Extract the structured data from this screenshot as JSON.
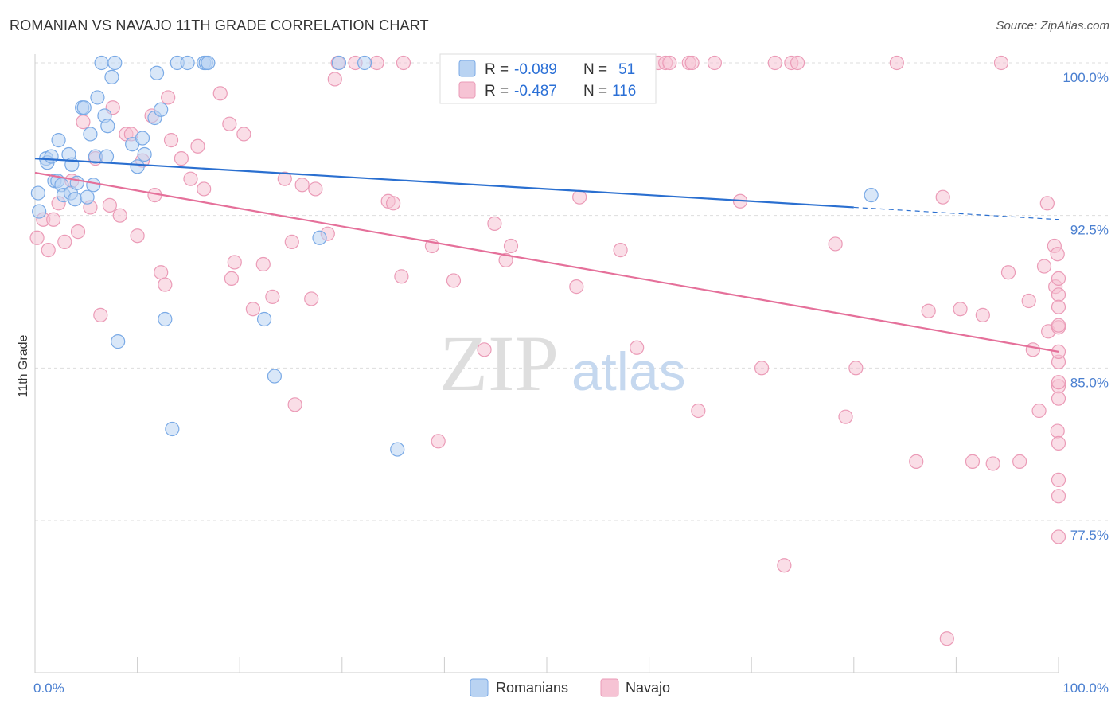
{
  "title": "ROMANIAN VS NAVAJO 11TH GRADE CORRELATION CHART",
  "source": "Source: ZipAtlas.com",
  "watermark": {
    "zip": "ZIP",
    "atlas": "atlas"
  },
  "chart_data": {
    "type": "scatter",
    "title": "ROMANIAN VS NAVAJO 11TH GRADE CORRELATION CHART",
    "xlabel": "",
    "ylabel": "11th Grade",
    "xlim": [
      0,
      100
    ],
    "ylim": [
      71.5,
      101.8
    ],
    "x_tick_labels": [
      {
        "value": 0,
        "label": "0.0%"
      },
      {
        "value": 100,
        "label": "100.0%"
      }
    ],
    "y_tick_labels": [
      {
        "value": 100,
        "label": "100.0%"
      },
      {
        "value": 92.5,
        "label": "92.5%"
      },
      {
        "value": 85,
        "label": "85.0%"
      },
      {
        "value": 77.5,
        "label": "77.5%"
      }
    ],
    "grid": true,
    "legend_position": "top-center",
    "legend": [
      {
        "r_label": "R =",
        "r_value": "-0.089",
        "n_label": "N =",
        "n_value": "51"
      },
      {
        "r_label": "R =",
        "r_value": "-0.487",
        "n_label": "N =",
        "n_value": "116"
      }
    ],
    "series": [
      {
        "name": "Romanians",
        "color": "#7aaae6",
        "fill": "#b9d3f2",
        "trend_color": "#2a6fd0",
        "trend": {
          "x0": 0,
          "y0": 95.3,
          "x1": 80,
          "y1": 92.9,
          "dashed_to_x": 100,
          "dashed_to_y": 92.3
        },
        "points": [
          [
            0.3,
            93.6
          ],
          [
            0.4,
            92.7
          ],
          [
            1.1,
            95.3
          ],
          [
            1.2,
            95.1
          ],
          [
            1.6,
            95.4
          ],
          [
            1.9,
            94.2
          ],
          [
            2.2,
            94.2
          ],
          [
            2.3,
            96.2
          ],
          [
            2.6,
            94.0
          ],
          [
            2.8,
            93.5
          ],
          [
            3.3,
            95.5
          ],
          [
            3.5,
            93.6
          ],
          [
            3.6,
            95.0
          ],
          [
            3.9,
            93.3
          ],
          [
            4.1,
            94.1
          ],
          [
            4.6,
            97.8
          ],
          [
            4.8,
            97.8
          ],
          [
            5.1,
            93.4
          ],
          [
            5.4,
            96.5
          ],
          [
            5.7,
            94.0
          ],
          [
            5.9,
            95.4
          ],
          [
            6.1,
            98.3
          ],
          [
            6.5,
            100.0
          ],
          [
            6.8,
            97.4
          ],
          [
            7.0,
            95.4
          ],
          [
            7.1,
            96.9
          ],
          [
            7.5,
            99.3
          ],
          [
            7.8,
            100.0
          ],
          [
            8.1,
            86.3
          ],
          [
            9.5,
            96.0
          ],
          [
            10.0,
            94.9
          ],
          [
            10.5,
            96.3
          ],
          [
            10.7,
            95.5
          ],
          [
            11.7,
            97.3
          ],
          [
            11.9,
            99.5
          ],
          [
            12.3,
            97.7
          ],
          [
            12.7,
            87.4
          ],
          [
            13.4,
            82.0
          ],
          [
            13.9,
            100.0
          ],
          [
            14.9,
            100.0
          ],
          [
            16.5,
            100.0
          ],
          [
            16.7,
            100.0
          ],
          [
            16.9,
            100.0
          ],
          [
            22.4,
            87.4
          ],
          [
            23.4,
            84.6
          ],
          [
            27.8,
            91.4
          ],
          [
            29.7,
            100.0
          ],
          [
            32.2,
            100.0
          ],
          [
            35.4,
            81.0
          ],
          [
            54.7,
            100.0
          ],
          [
            81.7,
            93.5
          ]
        ]
      },
      {
        "name": "Navajo",
        "color": "#eb9bb7",
        "fill": "#f6c3d4",
        "trend_color": "#e5709a",
        "trend": {
          "x0": 0,
          "y0": 94.6,
          "x1": 100,
          "y1": 85.8
        },
        "points": [
          [
            0.2,
            91.4
          ],
          [
            0.8,
            92.3
          ],
          [
            1.3,
            90.8
          ],
          [
            1.8,
            92.3
          ],
          [
            2.3,
            93.1
          ],
          [
            2.9,
            91.2
          ],
          [
            3.6,
            94.2
          ],
          [
            4.2,
            91.7
          ],
          [
            4.7,
            97.1
          ],
          [
            5.4,
            92.9
          ],
          [
            5.9,
            95.3
          ],
          [
            6.4,
            87.6
          ],
          [
            7.3,
            93.0
          ],
          [
            7.6,
            97.8
          ],
          [
            8.3,
            92.5
          ],
          [
            8.9,
            96.5
          ],
          [
            9.4,
            96.5
          ],
          [
            10.0,
            91.5
          ],
          [
            10.5,
            95.2
          ],
          [
            11.4,
            97.4
          ],
          [
            11.7,
            93.5
          ],
          [
            12.3,
            89.7
          ],
          [
            12.7,
            89.1
          ],
          [
            13.0,
            98.3
          ],
          [
            13.3,
            96.2
          ],
          [
            14.3,
            95.3
          ],
          [
            15.2,
            94.3
          ],
          [
            15.9,
            95.9
          ],
          [
            16.5,
            93.8
          ],
          [
            18.1,
            98.5
          ],
          [
            19.0,
            97.0
          ],
          [
            19.2,
            89.4
          ],
          [
            19.5,
            90.2
          ],
          [
            20.4,
            96.5
          ],
          [
            21.3,
            87.9
          ],
          [
            22.3,
            90.1
          ],
          [
            23.2,
            88.5
          ],
          [
            24.4,
            94.3
          ],
          [
            25.1,
            91.2
          ],
          [
            25.4,
            83.2
          ],
          [
            26.1,
            94.0
          ],
          [
            27.0,
            88.4
          ],
          [
            27.4,
            93.8
          ],
          [
            28.6,
            91.6
          ],
          [
            29.3,
            99.2
          ],
          [
            29.6,
            100.0
          ],
          [
            31.3,
            100.0
          ],
          [
            33.4,
            100.0
          ],
          [
            34.5,
            93.2
          ],
          [
            35.0,
            93.1
          ],
          [
            35.8,
            89.5
          ],
          [
            36.0,
            100.0
          ],
          [
            38.8,
            91.0
          ],
          [
            39.4,
            81.4
          ],
          [
            40.9,
            89.3
          ],
          [
            43.9,
            85.9
          ],
          [
            44.9,
            92.1
          ],
          [
            46.0,
            90.3
          ],
          [
            46.5,
            91.0
          ],
          [
            52.9,
            89.0
          ],
          [
            53.2,
            93.4
          ],
          [
            55.1,
            100.0
          ],
          [
            57.2,
            90.8
          ],
          [
            58.8,
            86.0
          ],
          [
            60.9,
            100.0
          ],
          [
            61.6,
            100.0
          ],
          [
            62.0,
            100.0
          ],
          [
            63.9,
            100.0
          ],
          [
            64.2,
            100.0
          ],
          [
            64.8,
            82.9
          ],
          [
            66.4,
            100.0
          ],
          [
            68.9,
            93.2
          ],
          [
            71.0,
            85.0
          ],
          [
            72.3,
            100.0
          ],
          [
            73.2,
            75.3
          ],
          [
            73.9,
            100.0
          ],
          [
            74.5,
            100.0
          ],
          [
            78.2,
            91.1
          ],
          [
            79.2,
            82.6
          ],
          [
            80.2,
            85.0
          ],
          [
            84.2,
            100.0
          ],
          [
            86.1,
            80.4
          ],
          [
            87.3,
            87.8
          ],
          [
            88.7,
            93.4
          ],
          [
            89.1,
            71.7
          ],
          [
            90.4,
            87.9
          ],
          [
            91.6,
            80.4
          ],
          [
            92.6,
            87.6
          ],
          [
            93.6,
            80.3
          ],
          [
            94.4,
            100.0
          ],
          [
            95.1,
            89.7
          ],
          [
            96.2,
            80.4
          ],
          [
            97.1,
            88.3
          ],
          [
            97.5,
            85.9
          ],
          [
            98.1,
            82.9
          ],
          [
            98.6,
            90.0
          ],
          [
            98.9,
            93.1
          ],
          [
            99.6,
            91.0
          ],
          [
            99.7,
            89.0
          ],
          [
            99.9,
            90.6
          ],
          [
            99.0,
            86.8
          ],
          [
            99.9,
            81.9
          ],
          [
            100.0,
            88.6
          ],
          [
            100.0,
            87.0
          ],
          [
            100.0,
            89.4
          ],
          [
            100.0,
            85.3
          ],
          [
            100.0,
            87.1
          ],
          [
            100.0,
            81.3
          ],
          [
            100.0,
            79.5
          ],
          [
            100.0,
            78.7
          ],
          [
            100.0,
            76.7
          ],
          [
            100.0,
            84.1
          ],
          [
            100.0,
            88.0
          ],
          [
            100.0,
            83.5
          ],
          [
            100.0,
            84.3
          ],
          [
            100.0,
            85.8
          ]
        ]
      }
    ]
  }
}
